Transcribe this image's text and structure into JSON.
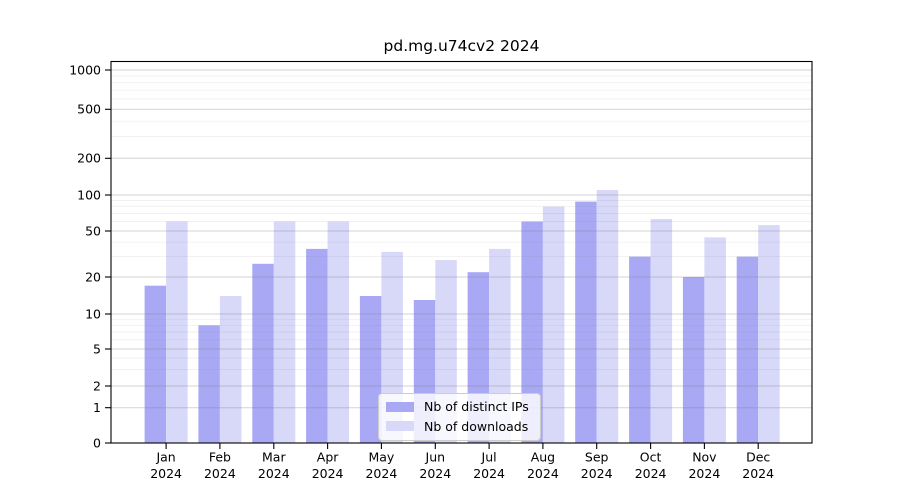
{
  "chart_data": {
    "type": "bar",
    "title": "pd.mg.u74cv2 2024",
    "categories": [
      "Jan 2024",
      "Feb 2024",
      "Mar 2024",
      "Apr 2024",
      "May 2024",
      "Jun 2024",
      "Jul 2024",
      "Aug 2024",
      "Sep 2024",
      "Oct 2024",
      "Nov 2024",
      "Dec 2024"
    ],
    "series": [
      {
        "name": "Nb of distinct IPs",
        "values": [
          17,
          8,
          26,
          35,
          14,
          13,
          22,
          60,
          88,
          30,
          20,
          30
        ],
        "color": "#a8a8f5"
      },
      {
        "name": "Nb of downloads",
        "values": [
          60,
          14,
          60,
          60,
          33,
          28,
          35,
          80,
          110,
          63,
          44,
          56
        ],
        "color": "#d8d8f9"
      }
    ],
    "xlabel": "",
    "ylabel": "",
    "yscale": "symlog",
    "yticks": [
      0,
      1,
      2,
      5,
      10,
      20,
      50,
      100,
      200,
      500,
      1000
    ],
    "yminorticks": [
      3,
      4,
      6,
      7,
      8,
      9,
      30,
      40,
      60,
      70,
      80,
      90,
      300,
      400,
      600,
      700,
      800,
      900
    ],
    "grid": "horizontal major+minor, drawn over bars",
    "legend_position": "inside lower-center"
  },
  "colors": {
    "ips_bar": "#a8a8f5",
    "downloads_bar": "#d8d8f9",
    "grid": "#808080",
    "axis": "#000000",
    "text": "#000000",
    "legend_border": "#cccccc",
    "legend_bg": "rgba(255,255,255,0.8)",
    "background": "#ffffff"
  }
}
